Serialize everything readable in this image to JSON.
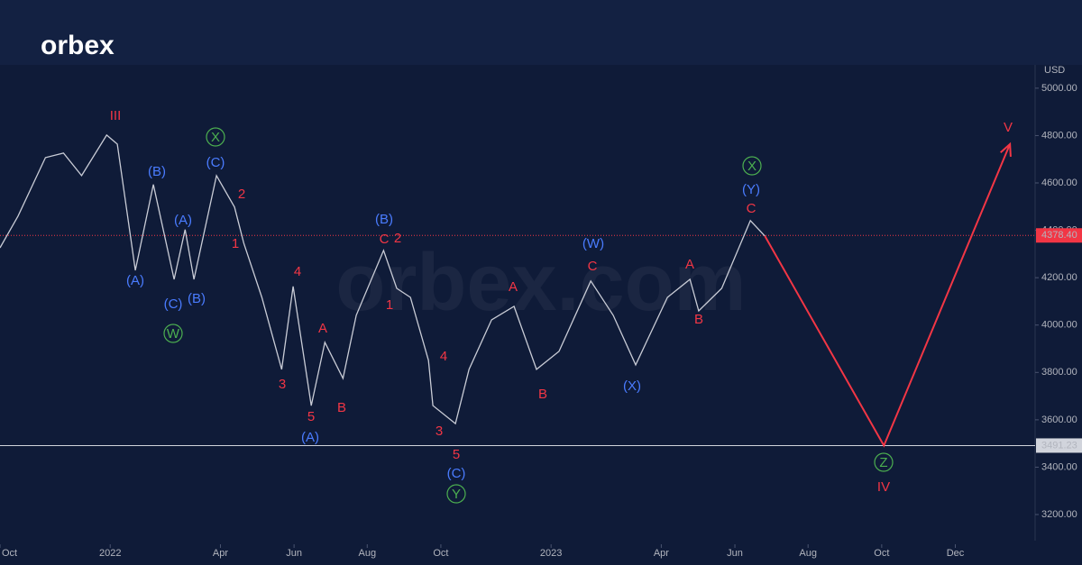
{
  "brand": "orbex",
  "watermark": "orbex.com",
  "chart_data": {
    "type": "line",
    "unit": "USD",
    "x": [
      2021.75,
      2021.791,
      2021.853,
      2021.894,
      2021.935,
      2021.992,
      2022.016,
      2022.057,
      2022.098,
      2022.145,
      2022.17,
      2022.19,
      2022.241,
      2022.282,
      2022.303,
      2022.344,
      2022.389,
      2022.415,
      2022.456,
      2022.487,
      2022.528,
      2022.558,
      2022.62,
      2022.65,
      2022.681,
      2022.722,
      2022.732,
      2022.783,
      2022.814,
      2022.865,
      2022.916,
      2022.967,
      2023.018,
      2023.09,
      2023.141,
      2023.192,
      2023.264,
      2023.315,
      2023.335,
      2023.387,
      2023.452,
      2023.485
    ],
    "values": [
      4326,
      4460,
      4707,
      4726,
      4631,
      4802,
      4764,
      4231,
      4593,
      4193,
      4403,
      4193,
      4631,
      4498,
      4345,
      4117,
      3813,
      4163,
      3660,
      3927,
      3775,
      4041,
      4315,
      4155,
      4117,
      3851,
      3660,
      3584,
      3813,
      4022,
      4079,
      3813,
      3889,
      4186,
      4041,
      3832,
      4117,
      4193,
      4060,
      4155,
      4441,
      4376
    ],
    "color": "#c9ccd6",
    "forecast": {
      "x": [
        2023.485,
        2023.755,
        2024.041
      ],
      "values": [
        4376,
        3491,
        4764
      ],
      "color": "#f23645"
    },
    "price_lines": [
      {
        "value": 4378.4,
        "label": "4378.40",
        "color": "#f23645",
        "style": "dotted"
      },
      {
        "value": 3491.23,
        "label": "3491.23",
        "color": "#d1d4dc",
        "style": "solid"
      }
    ],
    "xlim": [
      2021.75,
      2024.098
    ],
    "ylim": [
      2987,
      5106
    ],
    "xticks": [
      {
        "value": 2021.75,
        "label": "Oct"
      },
      {
        "value": 2022,
        "label": "2022"
      },
      {
        "value": 2022.25,
        "label": "Apr"
      },
      {
        "value": 2022.417,
        "label": "Jun"
      },
      {
        "value": 2022.583,
        "label": "Aug"
      },
      {
        "value": 2022.75,
        "label": "Oct"
      },
      {
        "value": 2023,
        "label": "2023"
      },
      {
        "value": 2023.25,
        "label": "Apr"
      },
      {
        "value": 2023.417,
        "label": "Jun"
      },
      {
        "value": 2023.583,
        "label": "Aug"
      },
      {
        "value": 2023.75,
        "label": "Oct"
      },
      {
        "value": 2023.917,
        "label": "Dec"
      }
    ],
    "yticks": [
      {
        "value": 5000,
        "label": "5000.00"
      },
      {
        "value": 4800,
        "label": "4800.00"
      },
      {
        "value": 4600,
        "label": "4600.00"
      },
      {
        "value": 4400,
        "label": "4400.00"
      },
      {
        "value": 4200,
        "label": "4200.00"
      },
      {
        "value": 4000,
        "label": "4000.00"
      },
      {
        "value": 3800,
        "label": "3800.00"
      },
      {
        "value": 3600,
        "label": "3600.00"
      },
      {
        "value": 3400,
        "label": "3400.00"
      },
      {
        "value": 3200,
        "label": "3200.00"
      }
    ],
    "wave_labels": [
      {
        "text": "III",
        "color": "#f23645"
      },
      {
        "text": "2",
        "color": "#f23645"
      },
      {
        "text": "1",
        "color": "#f23645"
      },
      {
        "text": "4",
        "color": "#f23645"
      },
      {
        "text": "3",
        "color": "#f23645"
      },
      {
        "text": "5",
        "color": "#f23645"
      },
      {
        "text": "A",
        "color": "#f23645"
      },
      {
        "text": "B",
        "color": "#f23645"
      },
      {
        "text": "C",
        "color": "#f23645"
      },
      {
        "text": "2",
        "color": "#f23645"
      },
      {
        "text": "1",
        "color": "#f23645"
      },
      {
        "text": "4",
        "color": "#f23645"
      },
      {
        "text": "3",
        "color": "#f23645"
      },
      {
        "text": "5",
        "color": "#f23645"
      },
      {
        "text": "A",
        "color": "#f23645"
      },
      {
        "text": "B",
        "color": "#f23645"
      },
      {
        "text": "C",
        "color": "#f23645"
      },
      {
        "text": "A",
        "color": "#f23645"
      },
      {
        "text": "B",
        "color": "#f23645"
      },
      {
        "text": "C",
        "color": "#f23645"
      },
      {
        "text": "V",
        "color": "#f23645"
      },
      {
        "text": "IV",
        "color": "#f23645"
      },
      {
        "text": "(B)",
        "color": "#4a7cff"
      },
      {
        "text": "(A)",
        "color": "#4a7cff"
      },
      {
        "text": "(A)",
        "color": "#4a7cff"
      },
      {
        "text": "(C)",
        "color": "#4a7cff"
      },
      {
        "text": "(B)",
        "color": "#4a7cff"
      },
      {
        "text": "(C)",
        "color": "#4a7cff"
      },
      {
        "text": "(A)",
        "color": "#4a7cff"
      },
      {
        "text": "(B)",
        "color": "#4a7cff"
      },
      {
        "text": "(C)",
        "color": "#4a7cff"
      },
      {
        "text": "(W)",
        "color": "#4a7cff"
      },
      {
        "text": "(X)",
        "color": "#4a7cff"
      },
      {
        "text": "(Y)",
        "color": "#4a7cff"
      },
      {
        "text": "X",
        "color": "#4caf50",
        "circled": true
      },
      {
        "text": "W",
        "color": "#4caf50",
        "circled": true
      },
      {
        "text": "Y",
        "color": "#4caf50",
        "circled": true
      },
      {
        "text": "X",
        "color": "#4caf50",
        "circled": true
      },
      {
        "text": "Z",
        "color": "#4caf50",
        "circled": true
      }
    ]
  }
}
